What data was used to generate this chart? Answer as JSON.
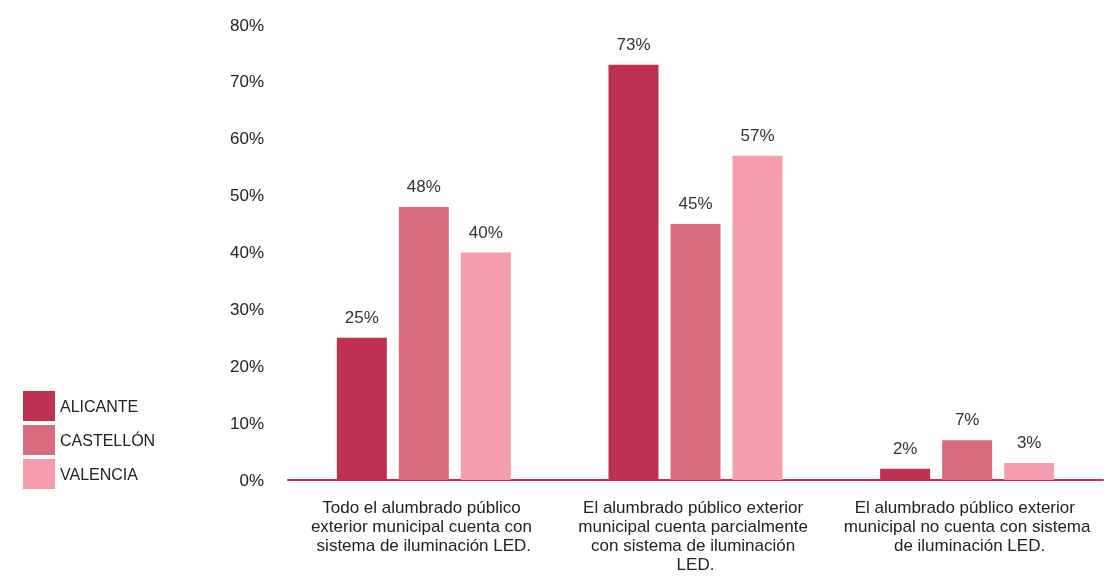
{
  "chart_data": {
    "type": "bar",
    "categories": [
      "Todo el alumbrado público exterior municipal cuenta con sistema de iluminación LED.",
      "El alumbrado público exterior municipal cuenta parcialmente con sistema de iluminación LED.",
      "El alumbrado público exterior municipal no cuenta con sistema de iluminación LED."
    ],
    "series": [
      {
        "name": "ALICANTE",
        "color": "#be3150",
        "values": [
          25,
          73,
          2
        ],
        "value_labels": [
          "25%",
          "73%",
          "2%"
        ]
      },
      {
        "name": "CASTELLÓN",
        "color": "#d66c7e",
        "values": [
          48,
          45,
          7
        ],
        "value_labels": [
          "48%",
          "45%",
          "7%"
        ]
      },
      {
        "name": "VALENCIA",
        "color": "#f59cad",
        "values": [
          40,
          57,
          3
        ],
        "value_labels": [
          "40%",
          "57%",
          "3%"
        ]
      }
    ],
    "ylim": [
      0,
      80
    ],
    "yticks": [
      {
        "value": 0,
        "label": "0%"
      },
      {
        "value": 10,
        "label": "10%"
      },
      {
        "value": 20,
        "label": "20%"
      },
      {
        "value": 30,
        "label": "30%"
      },
      {
        "value": 40,
        "label": "40%"
      },
      {
        "value": 50,
        "label": "50%"
      },
      {
        "value": 60,
        "label": "60%"
      },
      {
        "value": 70,
        "label": "70%"
      },
      {
        "value": 80,
        "label": "80%"
      }
    ],
    "grid": false,
    "legend": "left"
  }
}
